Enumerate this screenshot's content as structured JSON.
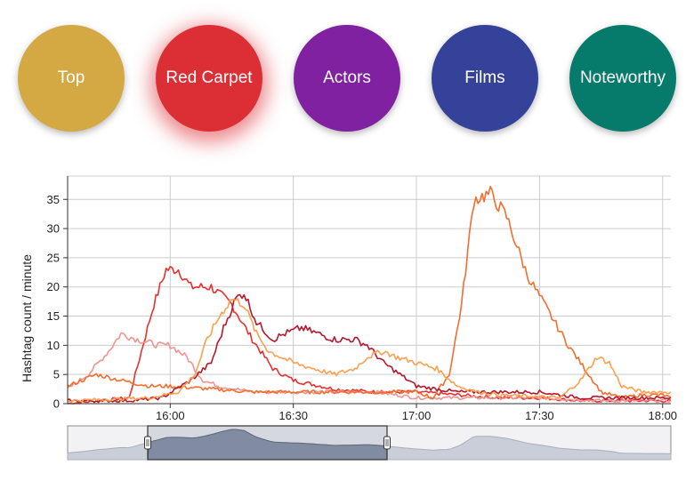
{
  "nav": {
    "buttons": [
      {
        "label": "Top",
        "color": "#d4a843",
        "active": false
      },
      {
        "label": "Red Carpet",
        "color": "#dc2e35",
        "active": true
      },
      {
        "label": "Actors",
        "color": "#7f21a0",
        "active": false
      },
      {
        "label": "Films",
        "color": "#344399",
        "active": false
      },
      {
        "label": "Noteworthy",
        "color": "#077b6b",
        "active": false
      }
    ]
  },
  "chart_data": {
    "type": "line",
    "ylabel": "Hashtag count / minute",
    "ylim": [
      0,
      39
    ],
    "yticks": [
      0,
      5,
      10,
      15,
      20,
      25,
      30,
      35
    ],
    "xlim": [
      "15:35",
      "18:02"
    ],
    "xticks": [
      "16:00",
      "16:30",
      "17:00",
      "17:30",
      "18:00"
    ],
    "grid": true,
    "series": [
      {
        "color": "#e8302f",
        "x": [
          "15:35",
          "15:50",
          "15:56",
          "15:59",
          "16:02",
          "16:05",
          "16:10",
          "16:15",
          "16:20",
          "16:25",
          "16:30",
          "16:40",
          "16:50",
          "17:00",
          "17:10",
          "17:20",
          "17:30",
          "17:40",
          "17:50",
          "18:02"
        ],
        "y": [
          0,
          1,
          17,
          23,
          23,
          20,
          20,
          17,
          11,
          6,
          4,
          2.5,
          2,
          2,
          1.5,
          1,
          1,
          0.5,
          0.5,
          0.5
        ]
      },
      {
        "color": "#f1938e",
        "x": [
          "15:35",
          "15:40",
          "15:45",
          "15:48",
          "15:52",
          "15:57",
          "16:00",
          "16:04",
          "16:08",
          "16:12",
          "16:20",
          "16:30",
          "16:40",
          "16:50",
          "17:00",
          "17:10",
          "17:20",
          "17:30",
          "17:45",
          "18:02"
        ],
        "y": [
          2.5,
          5,
          9,
          12,
          11,
          10,
          10,
          8,
          4,
          3,
          2,
          2,
          2,
          2,
          1,
          1,
          1,
          1,
          0.5,
          0.5
        ]
      },
      {
        "color": "#f46d2d",
        "x": [
          "15:35",
          "15:42",
          "15:48",
          "15:55",
          "16:00",
          "16:10",
          "16:20",
          "16:30",
          "16:40",
          "16:50",
          "17:00",
          "17:04",
          "17:08",
          "17:11",
          "17:14",
          "17:18",
          "17:22",
          "17:27",
          "17:32",
          "17:37",
          "17:41",
          "17:45",
          "17:50",
          "17:55",
          "18:00",
          "18:02"
        ],
        "y": [
          3,
          5,
          4,
          3,
          3,
          2.5,
          2,
          2,
          2,
          2,
          2,
          1,
          5,
          17,
          35,
          36,
          32,
          22,
          16,
          10,
          6,
          2,
          1,
          1.5,
          1.5,
          1
        ]
      },
      {
        "color": "#b5172c",
        "x": [
          "15:35",
          "15:50",
          "15:58",
          "16:05",
          "16:10",
          "16:13",
          "16:16",
          "16:18",
          "16:21",
          "16:25",
          "16:28",
          "16:32",
          "16:36",
          "16:40",
          "16:45",
          "16:48",
          "16:52",
          "17:00",
          "17:10",
          "17:20",
          "17:30",
          "17:40",
          "17:50",
          "18:02"
        ],
        "y": [
          0.5,
          0.5,
          1,
          4,
          7,
          13,
          18,
          19,
          14,
          11,
          12,
          13,
          12,
          11,
          11,
          10,
          7,
          3,
          2,
          2,
          2,
          1,
          1,
          1
        ]
      },
      {
        "color": "#fba04e",
        "x": [
          "15:35",
          "15:55",
          "16:02",
          "16:06",
          "16:09",
          "16:12",
          "16:15",
          "16:18",
          "16:21",
          "16:24",
          "16:27",
          "16:30",
          "16:35",
          "16:40",
          "16:45",
          "16:48",
          "16:52",
          "16:55",
          "17:00",
          "17:05",
          "17:10",
          "17:15",
          "17:20",
          "17:35",
          "17:40",
          "17:44",
          "17:47",
          "17:50",
          "17:55",
          "18:02"
        ],
        "y": [
          0.5,
          1,
          2,
          5,
          11,
          15,
          18,
          17,
          12,
          9,
          8,
          7,
          6,
          5,
          6,
          8,
          9,
          8,
          7,
          6,
          3,
          2,
          1.5,
          1,
          4,
          8,
          7,
          3,
          2,
          2
        ]
      }
    ]
  }
}
